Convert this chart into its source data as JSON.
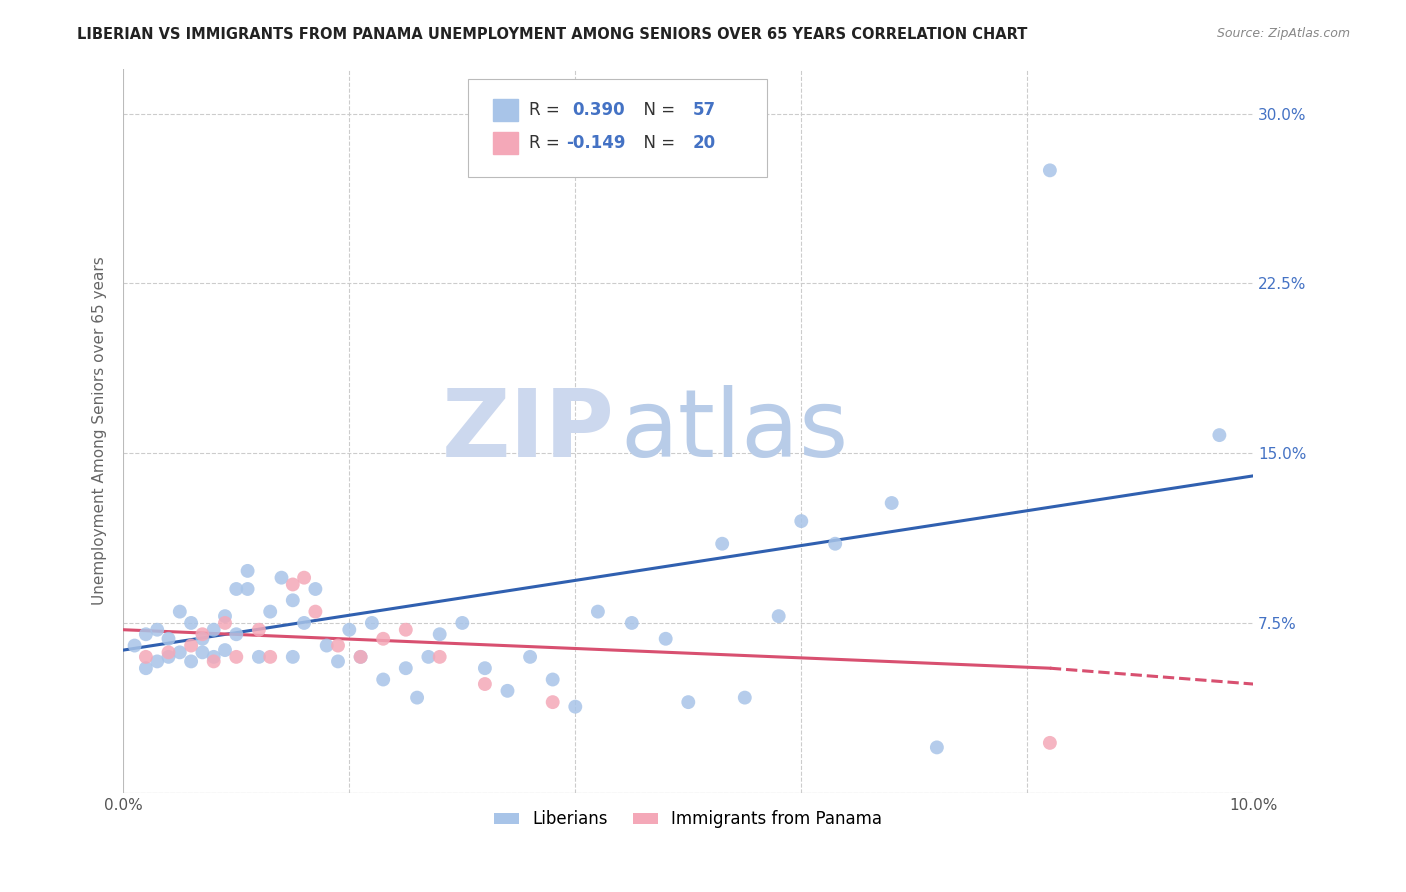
{
  "title": "LIBERIAN VS IMMIGRANTS FROM PANAMA UNEMPLOYMENT AMONG SENIORS OVER 65 YEARS CORRELATION CHART",
  "source": "Source: ZipAtlas.com",
  "ylabel": "Unemployment Among Seniors over 65 years",
  "xlim": [
    0.0,
    0.1
  ],
  "ylim": [
    0.0,
    0.32
  ],
  "ytick_labels_right": [
    "",
    "7.5%",
    "15.0%",
    "22.5%",
    "30.0%"
  ],
  "ytick_values_right": [
    0.0,
    0.075,
    0.15,
    0.225,
    0.3
  ],
  "liberian_R": 0.39,
  "liberian_N": 57,
  "panama_R": -0.149,
  "panama_N": 20,
  "liberian_color": "#a8c4e8",
  "panama_color": "#f4a8b8",
  "liberian_line_color": "#3060b0",
  "panama_line_color": "#d85070",
  "liberian_x": [
    0.001,
    0.002,
    0.002,
    0.003,
    0.003,
    0.004,
    0.004,
    0.005,
    0.005,
    0.006,
    0.006,
    0.007,
    0.007,
    0.008,
    0.008,
    0.009,
    0.009,
    0.01,
    0.01,
    0.011,
    0.011,
    0.012,
    0.013,
    0.014,
    0.015,
    0.015,
    0.016,
    0.017,
    0.018,
    0.019,
    0.02,
    0.021,
    0.022,
    0.023,
    0.025,
    0.026,
    0.027,
    0.028,
    0.03,
    0.032,
    0.034,
    0.036,
    0.038,
    0.04,
    0.042,
    0.045,
    0.048,
    0.05,
    0.053,
    0.055,
    0.058,
    0.06,
    0.063,
    0.068,
    0.072,
    0.082,
    0.097
  ],
  "liberian_y": [
    0.065,
    0.055,
    0.07,
    0.058,
    0.072,
    0.06,
    0.068,
    0.062,
    0.08,
    0.058,
    0.075,
    0.062,
    0.068,
    0.06,
    0.072,
    0.063,
    0.078,
    0.07,
    0.09,
    0.098,
    0.09,
    0.06,
    0.08,
    0.095,
    0.06,
    0.085,
    0.075,
    0.09,
    0.065,
    0.058,
    0.072,
    0.06,
    0.075,
    0.05,
    0.055,
    0.042,
    0.06,
    0.07,
    0.075,
    0.055,
    0.045,
    0.06,
    0.05,
    0.038,
    0.08,
    0.075,
    0.068,
    0.04,
    0.11,
    0.042,
    0.078,
    0.12,
    0.11,
    0.128,
    0.02,
    0.275,
    0.158
  ],
  "panama_x": [
    0.002,
    0.004,
    0.006,
    0.007,
    0.008,
    0.009,
    0.01,
    0.012,
    0.013,
    0.015,
    0.016,
    0.017,
    0.019,
    0.021,
    0.023,
    0.025,
    0.028,
    0.032,
    0.038,
    0.082
  ],
  "panama_y": [
    0.06,
    0.062,
    0.065,
    0.07,
    0.058,
    0.075,
    0.06,
    0.072,
    0.06,
    0.092,
    0.095,
    0.08,
    0.065,
    0.06,
    0.068,
    0.072,
    0.06,
    0.048,
    0.04,
    0.022
  ],
  "watermark_zip": "ZIP",
  "watermark_atlas": "atlas",
  "background_color": "#ffffff",
  "grid_color": "#cccccc"
}
